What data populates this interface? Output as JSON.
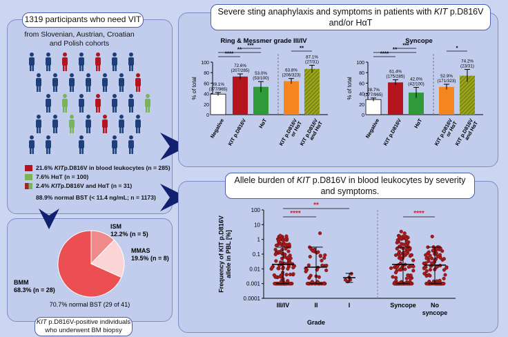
{
  "left_panel": {
    "title": "1319 participants who need VIT",
    "cohorts": "from Slovenian, Austrian, Croatian and Polish cohorts",
    "legend": [
      {
        "pct": "21.6%",
        "label_pre": "",
        "italic": "KIT",
        "label_post": " p.D816V in blood leukocytes  (n = 285)",
        "color": "#b3141d"
      },
      {
        "pct": "7.6%",
        "label_pre": "HαT (n = 100)",
        "italic": "",
        "label_post": "",
        "color": "#7bb35a"
      },
      {
        "pct": "2.4%",
        "label_pre": "",
        "italic": "KIT",
        "label_post": " p.D816V and HαT (n = 31)",
        "color": "#9b2a1c"
      }
    ],
    "bst_note": "88.9% normal BST (< 11.4 ng/mL; n = 1173)"
  },
  "pie_panel": {
    "footer_italic": "KIT",
    "footer_rest": " p.D816V-positive individuals",
    "footer_line2": "who underwent BM biopsy",
    "bst_note": "70.7%  normal BST (29 of 41)",
    "slices": [
      {
        "name": "ISM",
        "pct": "12.2% (n = 5)",
        "value": 12.2,
        "color": "#f08a8a"
      },
      {
        "name": "MMAS",
        "pct": "19.5% (n = 8)",
        "value": 19.5,
        "color": "#fbd5d5"
      },
      {
        "name": "BMM",
        "pct": "68.3% (n = 28)",
        "value": 68.3,
        "color": "#ec4f52"
      }
    ]
  },
  "top_right": {
    "title_line1_pre": "Severe sting anaphylaxis and symptoms in patients with ",
    "title_italic": "KIT",
    "title_line1_post": " p.D816V",
    "title_line2": "and/or HαT"
  },
  "bottom_right": {
    "title_line1_pre": "Allele burden of ",
    "title_italic": "KIT",
    "title_line1_post": " p.D816V in blood leukocytes by severity",
    "title_line2": "and symptoms."
  },
  "chart_data": [
    {
      "type": "bar",
      "title": "Ring & Messmer grade III/IV",
      "ylabel": "% of total",
      "ylim": [
        0,
        100
      ],
      "yticks": [
        0,
        20,
        40,
        60,
        80,
        100
      ],
      "categories": [
        "Negative",
        "KIT p.D816V",
        "HαT",
        "KIT p.D816V or HαT",
        "KIT p.D816V and HαT"
      ],
      "values": [
        39.1,
        72.6,
        53.0,
        63.8,
        87.1
      ],
      "errors": [
        3,
        5,
        10,
        5,
        7
      ],
      "labels": [
        [
          "39.1%",
          "(377/965)"
        ],
        [
          "72.6%",
          "(207/285)"
        ],
        [
          "53.0%",
          "(53/100)"
        ],
        [
          "63.8%",
          "(206/323)"
        ],
        [
          "87.1%",
          "(27/31)"
        ]
      ],
      "colors": [
        "#ffffff",
        "#b3141d",
        "#2e9a3a",
        "#f4851f",
        "#98a41a"
      ],
      "hatched": [
        false,
        false,
        false,
        false,
        true
      ],
      "significance": [
        {
          "from": 0,
          "to": 1,
          "stars": "****"
        },
        {
          "from": 0,
          "to": 2,
          "stars": "**"
        },
        {
          "from": 1,
          "to": 2,
          "stars": "***"
        },
        {
          "from": 3,
          "to": 4,
          "stars": "**"
        }
      ]
    },
    {
      "type": "bar",
      "title": "Syncope",
      "ylabel": "% of total",
      "ylim": [
        0,
        100
      ],
      "yticks": [
        0,
        20,
        40,
        60,
        80,
        100
      ],
      "categories": [
        "Negative",
        "KIT p.D816V",
        "HαT",
        "KIT p.D816V or HαT",
        "KIT p.D816V and HαT"
      ],
      "values": [
        28.7,
        61.4,
        42.0,
        52.9,
        74.2
      ],
      "errors": [
        3,
        5,
        10,
        5,
        12
      ],
      "labels": [
        [
          "28.7%",
          "(277/965)"
        ],
        [
          "61.4%",
          "(175/285)"
        ],
        [
          "42.0%",
          "(42/100)"
        ],
        [
          "52.9%",
          "(171/323)"
        ],
        [
          "74.2%",
          "(23/31)"
        ]
      ],
      "colors": [
        "#ffffff",
        "#b3141d",
        "#2e9a3a",
        "#f4851f",
        "#98a41a"
      ],
      "hatched": [
        false,
        false,
        false,
        false,
        true
      ],
      "significance": [
        {
          "from": 0,
          "to": 1,
          "stars": "****"
        },
        {
          "from": 0,
          "to": 2,
          "stars": "**"
        },
        {
          "from": 1,
          "to": 2,
          "stars": "***"
        },
        {
          "from": 3,
          "to": 4,
          "stars": "*"
        }
      ]
    },
    {
      "type": "scatter",
      "ylabel_line1": "Frequency of KIT p.D816V",
      "ylabel_line2": "allele in PBL [%]",
      "xlabel": "Grade",
      "yscale": "log",
      "ylim": [
        0.0001,
        100
      ],
      "yticks": [
        "0.0001",
        "0.001",
        "0.01",
        "0.1",
        "1",
        "10",
        "100"
      ],
      "categories": [
        "III/IV",
        "II",
        "I",
        "Syncope",
        "No syncope"
      ],
      "medians": [
        0.02,
        0.013,
        0.0025,
        0.02,
        0.018
      ],
      "lower": [
        0.001,
        0.001,
        0.0012,
        0.001,
        0.001
      ],
      "upper": [
        0.3,
        0.3,
        0.005,
        0.3,
        0.3
      ],
      "point_counts": [
        207,
        53,
        5,
        175,
        110
      ],
      "significance": [
        {
          "from": 0,
          "to": 1,
          "stars": "****"
        },
        {
          "from": 0,
          "to": 2,
          "stars": "**"
        },
        {
          "from": 3,
          "to": 4,
          "stars": "****"
        }
      ]
    }
  ]
}
